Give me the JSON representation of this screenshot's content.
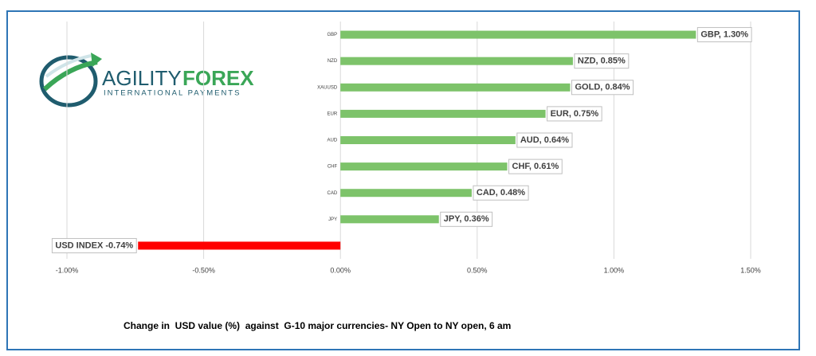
{
  "chart_data": {
    "type": "barh",
    "logo": {
      "brand_left": "AGILITY",
      "brand_right": "FOREX",
      "tagline": "INTERNATIONAL PAYMENTS"
    },
    "caption": "Change in  USD value (%)  against  G-10 major currencies- NY Open to NY open, 6 am",
    "categories": [
      "GBP",
      "NZD",
      "XAUUSD",
      "EUR",
      "AUD",
      "CHF",
      "CAD",
      "JPY",
      null
    ],
    "values": [
      1.3,
      0.85,
      0.84,
      0.75,
      0.64,
      0.61,
      0.48,
      0.36,
      -0.74
    ],
    "value_labels": [
      "GBP, 1.30%",
      "NZD, 0.85%",
      "GOLD, 0.84%",
      "EUR, 0.75%",
      "AUD, 0.64%",
      "CHF, 0.61%",
      "CAD, 0.48%",
      "JPY, 0.36%",
      "USD INDEX -0.74%"
    ],
    "colors": [
      "#7dc36a",
      "#7dc36a",
      "#7dc36a",
      "#7dc36a",
      "#7dc36a",
      "#7dc36a",
      "#7dc36a",
      "#7dc36a",
      "#ff0000"
    ],
    "xlim": [
      -1,
      1.5
    ],
    "xticks": [
      {
        "value": -1,
        "label": "-1.00%"
      },
      {
        "value": -0.5,
        "label": "-0.50%"
      },
      {
        "value": 0,
        "label": "0.00%"
      },
      {
        "value": 0.5,
        "label": "0.50%"
      },
      {
        "value": 1,
        "label": "1.00%"
      },
      {
        "value": 1.5,
        "label": "1.50%"
      }
    ],
    "grid": true
  }
}
